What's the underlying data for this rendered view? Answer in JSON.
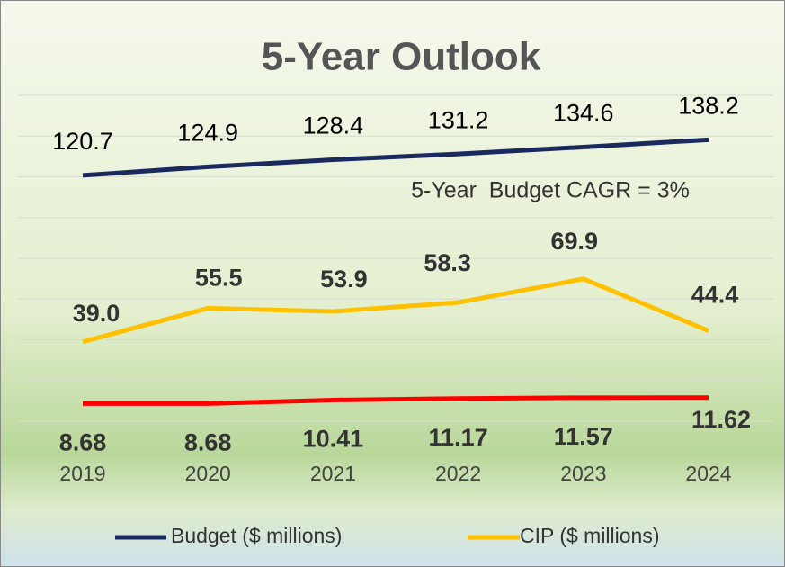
{
  "chart_data": {
    "type": "line",
    "title": "5-Year Outlook",
    "categories": [
      "2019",
      "2020",
      "2021",
      "2022",
      "2023",
      "2024"
    ],
    "series": [
      {
        "name": "Budget ($ millions)",
        "color": "#1b2a5e",
        "values": [
          120.7,
          124.9,
          128.4,
          131.2,
          134.6,
          138.2
        ]
      },
      {
        "name": "CIP ($ millions)",
        "color": "#ffc000",
        "values": [
          39.0,
          55.5,
          53.9,
          58.3,
          69.9,
          44.4
        ],
        "value_labels": [
          "39.0",
          "55.5",
          "53.9",
          "58.3",
          "69.9",
          "44.4"
        ]
      },
      {
        "color": "#ff0000",
        "values": [
          8.68,
          8.68,
          10.41,
          11.17,
          11.57,
          11.62
        ]
      }
    ],
    "annotation": "5-Year  Budget CAGR = 3%",
    "ylim": [
      0,
      160
    ],
    "yticks": [
      0,
      20,
      40,
      60,
      80,
      100,
      120,
      140,
      160
    ],
    "grid": true,
    "legend": "bottom"
  }
}
